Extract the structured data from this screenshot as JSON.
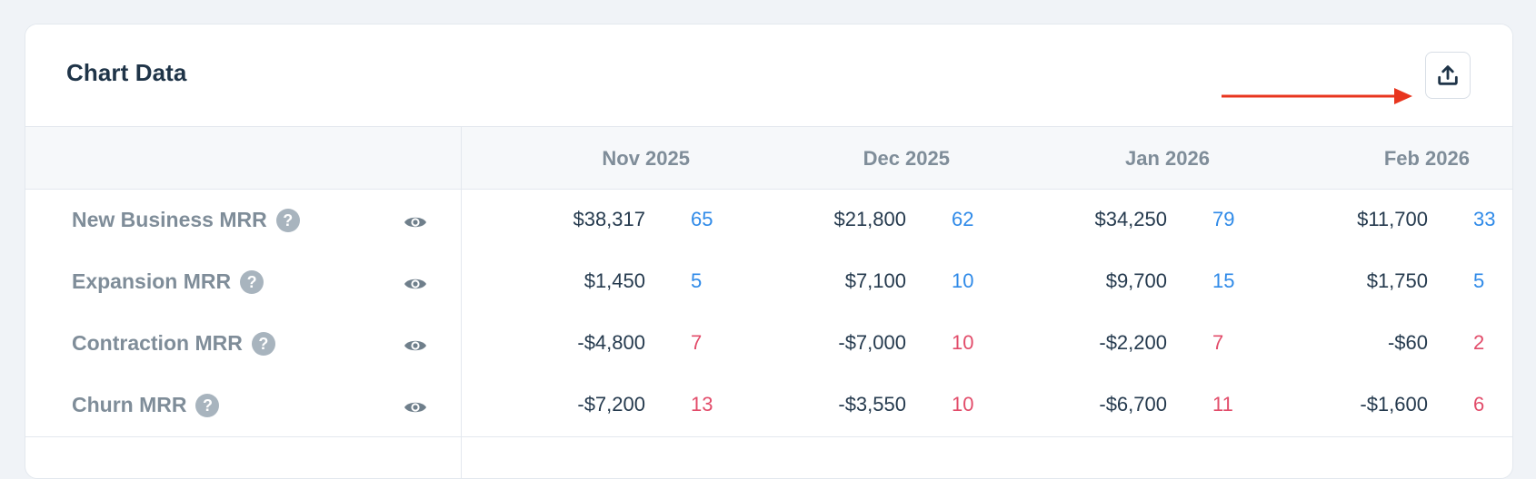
{
  "card": {
    "title": "Chart Data"
  },
  "toolbar": {
    "export_icon": "upload-icon",
    "arrow_color": "#e8351e"
  },
  "table": {
    "months": [
      "Nov 2025",
      "Dec 2025",
      "Jan 2026",
      "Feb 2026"
    ],
    "rows": [
      {
        "label": "New Business MRR",
        "help": "?",
        "type": "positive",
        "cells": [
          {
            "value": "$38,317",
            "count": "65"
          },
          {
            "value": "$21,800",
            "count": "62"
          },
          {
            "value": "$34,250",
            "count": "79"
          },
          {
            "value": "$11,700",
            "count": "33"
          }
        ]
      },
      {
        "label": "Expansion MRR",
        "help": "?",
        "type": "positive",
        "cells": [
          {
            "value": "$1,450",
            "count": "5"
          },
          {
            "value": "$7,100",
            "count": "10"
          },
          {
            "value": "$9,700",
            "count": "15"
          },
          {
            "value": "$1,750",
            "count": "5"
          }
        ]
      },
      {
        "label": "Contraction MRR",
        "help": "?",
        "type": "negative",
        "cells": [
          {
            "value": "-$4,800",
            "count": "7"
          },
          {
            "value": "-$7,000",
            "count": "10"
          },
          {
            "value": "-$2,200",
            "count": "7"
          },
          {
            "value": "-$60",
            "count": "2"
          }
        ]
      },
      {
        "label": "Churn MRR",
        "help": "?",
        "type": "negative",
        "cells": [
          {
            "value": "-$7,200",
            "count": "13"
          },
          {
            "value": "-$3,550",
            "count": "10"
          },
          {
            "value": "-$6,700",
            "count": "11"
          },
          {
            "value": "-$1,600",
            "count": "6"
          }
        ]
      }
    ]
  },
  "colors": {
    "positive_count": "#2f8ae8",
    "negative_count": "#e24c6a",
    "label": "#7f8d99",
    "value": "#253a4e"
  }
}
